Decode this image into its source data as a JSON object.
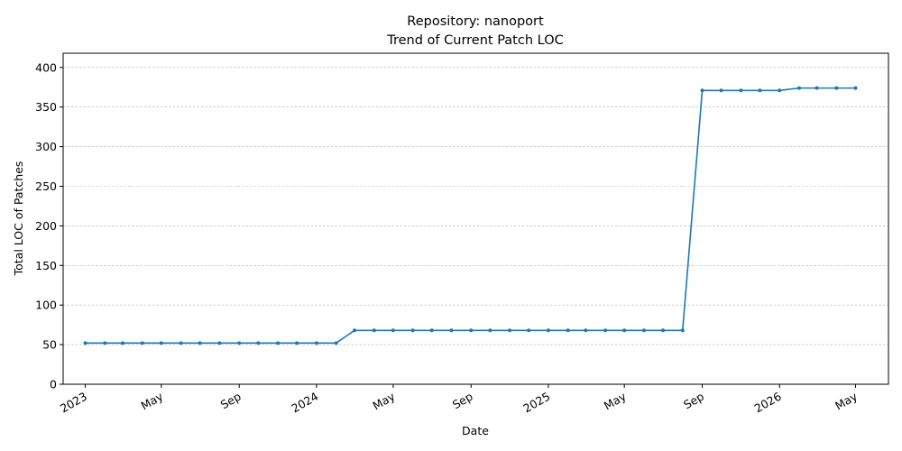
{
  "chart_data": {
    "type": "line",
    "title": "Repository: nanoport",
    "subtitle": "Trend of Current Patch LOC",
    "xlabel": "Date",
    "ylabel": "Total LOC of Patches",
    "ylim": [
      0,
      418
    ],
    "yticks": [
      0,
      50,
      100,
      150,
      200,
      250,
      300,
      350,
      400
    ],
    "xlim": [
      "2022-11-27",
      "2026-06-22"
    ],
    "xticks": [
      {
        "date": "2023-01-01",
        "label": "2023"
      },
      {
        "date": "2023-05-01",
        "label": "May"
      },
      {
        "date": "2023-09-01",
        "label": "Sep"
      },
      {
        "date": "2024-01-01",
        "label": "2024"
      },
      {
        "date": "2024-05-01",
        "label": "May"
      },
      {
        "date": "2024-09-01",
        "label": "Sep"
      },
      {
        "date": "2025-01-01",
        "label": "2025"
      },
      {
        "date": "2025-05-01",
        "label": "May"
      },
      {
        "date": "2025-09-01",
        "label": "Sep"
      },
      {
        "date": "2026-01-01",
        "label": "2026"
      },
      {
        "date": "2026-05-01",
        "label": "May"
      }
    ],
    "grid": "y-dashed",
    "color": "#1f77b4",
    "series": [
      {
        "x": [
          "2023-01-01",
          "2023-02-01",
          "2023-03-01",
          "2023-04-01",
          "2023-05-01",
          "2023-06-01",
          "2023-07-01",
          "2023-08-01",
          "2023-09-01",
          "2023-10-01",
          "2023-11-01",
          "2023-12-01",
          "2024-01-01",
          "2024-02-01",
          "2024-03-01",
          "2024-04-01",
          "2024-05-01",
          "2024-06-01",
          "2024-07-01",
          "2024-08-01",
          "2024-09-01",
          "2024-10-01",
          "2024-11-01",
          "2024-12-01",
          "2025-01-01",
          "2025-02-01",
          "2025-03-01",
          "2025-04-01",
          "2025-05-01",
          "2025-06-01",
          "2025-07-01",
          "2025-08-01",
          "2025-09-01",
          "2025-10-01",
          "2025-11-01",
          "2025-12-01",
          "2026-01-01",
          "2026-02-01",
          "2026-03-01",
          "2026-04-01",
          "2026-05-01"
        ],
        "y": [
          52,
          52,
          52,
          52,
          52,
          52,
          52,
          52,
          52,
          52,
          52,
          52,
          52,
          52,
          68,
          68,
          68,
          68,
          68,
          68,
          68,
          68,
          68,
          68,
          68,
          68,
          68,
          68,
          68,
          68,
          68,
          68,
          371,
          371,
          371,
          371,
          371,
          374,
          374,
          374,
          374
        ]
      }
    ]
  }
}
